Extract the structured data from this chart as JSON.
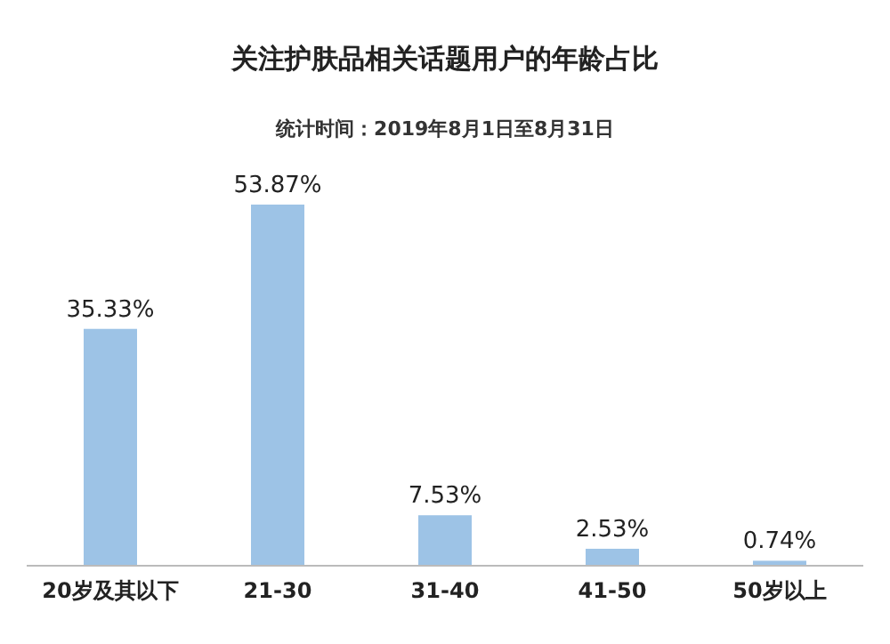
{
  "chart_data": {
    "type": "bar",
    "title": "关注护肤品相关话题用户的年龄占比",
    "subtitle": "统计时间：2019年8月1日至8月31日",
    "categories": [
      "20岁及其以下",
      "21-30",
      "31-40",
      "41-50",
      "50岁以上"
    ],
    "values": [
      35.33,
      53.87,
      7.53,
      2.53,
      0.74
    ],
    "value_labels": [
      "35.33%",
      "53.87%",
      "7.53%",
      "2.53%",
      "0.74%"
    ],
    "color": "#9dc3e6"
  }
}
